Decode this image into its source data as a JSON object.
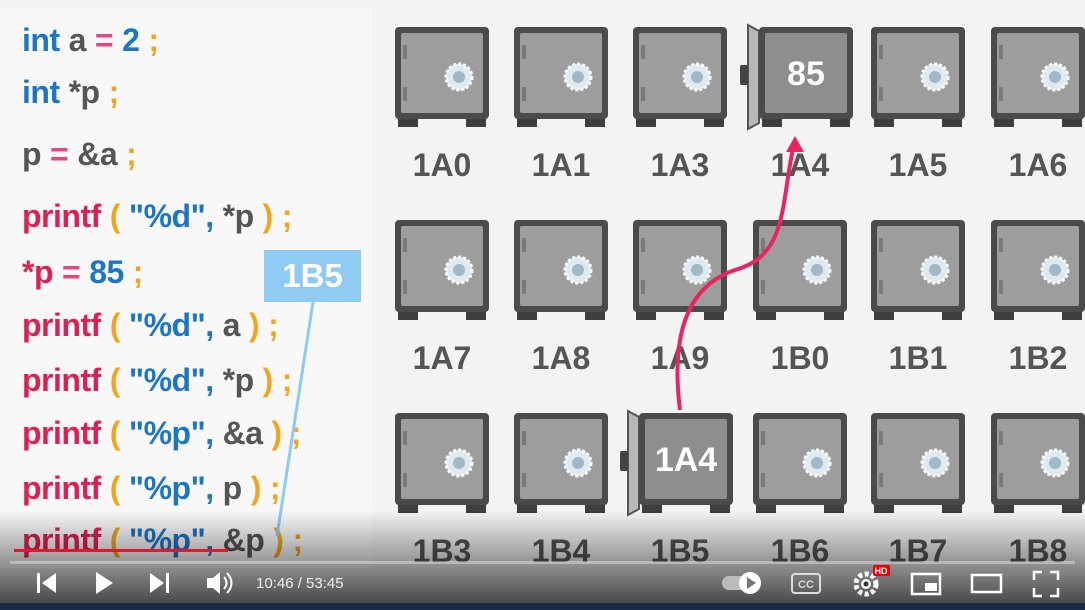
{
  "code": {
    "lines": [
      [
        {
          "text": "int",
          "color": "#1c76c5"
        },
        {
          "text": "a",
          "color": "#555555"
        },
        {
          "text": "=",
          "color": "#e9467f"
        },
        {
          "text": "2",
          "color": "#1c76c5"
        },
        {
          "text": ";",
          "color": "#f2a51c"
        }
      ],
      [
        {
          "text": "int",
          "color": "#1c76c5"
        },
        {
          "text": "*p",
          "color": "#555555"
        },
        {
          "text": ";",
          "color": "#f2a51c"
        }
      ],
      [
        {
          "text": "p",
          "color": "#555555"
        },
        {
          "text": "=",
          "color": "#e9467f"
        },
        {
          "text": "&a",
          "color": "#555555"
        },
        {
          "text": ";",
          "color": "#f2a51c"
        }
      ],
      [
        {
          "text": "printf",
          "color": "#dd1f52"
        },
        {
          "text": "(",
          "color": "#f2a51c"
        },
        {
          "text": "\"%d\",",
          "color": "#1c76c5"
        },
        {
          "text": "*p",
          "color": "#555555"
        },
        {
          "text": ")",
          "color": "#f2a51c"
        },
        {
          "text": ";",
          "color": "#f2a51c"
        }
      ],
      [
        {
          "text": "*p",
          "color": "#dd1f52"
        },
        {
          "text": "=",
          "color": "#e9467f"
        },
        {
          "text": "85",
          "color": "#1c76c5"
        },
        {
          "text": ";",
          "color": "#f2a51c"
        }
      ],
      [
        {
          "text": "printf",
          "color": "#dd1f52"
        },
        {
          "text": "(",
          "color": "#f2a51c"
        },
        {
          "text": "\"%d\",",
          "color": "#1c76c5"
        },
        {
          "text": "a",
          "color": "#555555"
        },
        {
          "text": ")",
          "color": "#f2a51c"
        },
        {
          "text": ";",
          "color": "#f2a51c"
        }
      ],
      [
        {
          "text": "printf",
          "color": "#dd1f52"
        },
        {
          "text": "(",
          "color": "#f2a51c"
        },
        {
          "text": "\"%d\",",
          "color": "#1c76c5"
        },
        {
          "text": "*p",
          "color": "#555555"
        },
        {
          "text": ")",
          "color": "#f2a51c"
        },
        {
          "text": ";",
          "color": "#f2a51c"
        }
      ],
      [
        {
          "text": "printf",
          "color": "#dd1f52"
        },
        {
          "text": "(",
          "color": "#f2a51c"
        },
        {
          "text": "\"%p\",",
          "color": "#1c76c5"
        },
        {
          "text": "&a",
          "color": "#555555"
        },
        {
          "text": ")",
          "color": "#f2a51c"
        },
        {
          "text": ";",
          "color": "#f2a51c"
        }
      ],
      [
        {
          "text": "printf",
          "color": "#dd1f52"
        },
        {
          "text": "(",
          "color": "#f2a51c"
        },
        {
          "text": "\"%p\",",
          "color": "#1c76c5"
        },
        {
          "text": "p",
          "color": "#555555"
        },
        {
          "text": ")",
          "color": "#f2a51c"
        },
        {
          "text": ";",
          "color": "#f2a51c"
        }
      ],
      [
        {
          "text": "printf",
          "color": "#dd1f52"
        },
        {
          "text": "(",
          "color": "#f2a51c"
        },
        {
          "text": "\"%p\",",
          "color": "#1c76c5"
        },
        {
          "text": "&p",
          "color": "#555555"
        },
        {
          "text": ")",
          "color": "#f2a51c"
        },
        {
          "text": ";",
          "color": "#f2a51c"
        }
      ]
    ],
    "pointer_value": "1B5"
  },
  "safes": [
    [
      {
        "label": "1A0"
      },
      {
        "label": "1A1"
      },
      {
        "label": "1A3"
      },
      {
        "label": "1A4",
        "content": "85",
        "open": true
      },
      {
        "label": "1A5"
      },
      {
        "label": "1A6"
      }
    ],
    [
      {
        "label": "1A7"
      },
      {
        "label": "1A8"
      },
      {
        "label": "1A9"
      },
      {
        "label": "1B0"
      },
      {
        "label": "1B1"
      },
      {
        "label": "1B2"
      }
    ],
    [
      {
        "label": "1B3"
      },
      {
        "label": "1B4"
      },
      {
        "label": "1B5",
        "content": "1A4",
        "open": true
      },
      {
        "label": "1B6"
      },
      {
        "label": "1B7"
      },
      {
        "label": "1B8"
      }
    ]
  ],
  "player": {
    "time": "10:46 / 53:45",
    "hd": "HD",
    "cc": "CC"
  }
}
